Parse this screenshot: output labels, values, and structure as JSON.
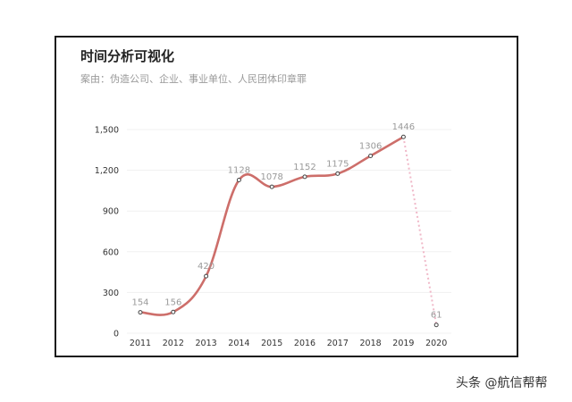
{
  "title": "时间分析可视化",
  "subtitle": "案由：伪造公司、企业、事业单位、人民团体印章罪",
  "watermark": "头条 @航信帮帮",
  "colors": {
    "line": "#cd6e6a",
    "dashed": "#f0b8c8",
    "point_stroke": "#444444",
    "grid": "#f0f0f0"
  },
  "chart_data": {
    "type": "line",
    "title": "时间分析可视化",
    "subtitle": "案由：伪造公司、企业、事业单位、人民团体印章罪",
    "xlabel": "",
    "ylabel": "",
    "categories": [
      "2011",
      "2012",
      "2013",
      "2014",
      "2015",
      "2016",
      "2017",
      "2018",
      "2019",
      "2020"
    ],
    "values": [
      154,
      156,
      420,
      1128,
      1078,
      1152,
      1175,
      1306,
      1446,
      61
    ],
    "data_labels": [
      "154",
      "156",
      "420",
      "1128",
      "1078",
      "1152",
      "1175",
      "1306",
      "1446",
      "61"
    ],
    "dashed_last_segment": true,
    "y_ticks": [
      0,
      300,
      600,
      900,
      1200,
      1500
    ],
    "y_tick_labels": [
      "0",
      "300",
      "600",
      "900",
      "1,200",
      "1,500"
    ],
    "ylim": [
      0,
      1500
    ],
    "grid": true,
    "legend": false
  }
}
